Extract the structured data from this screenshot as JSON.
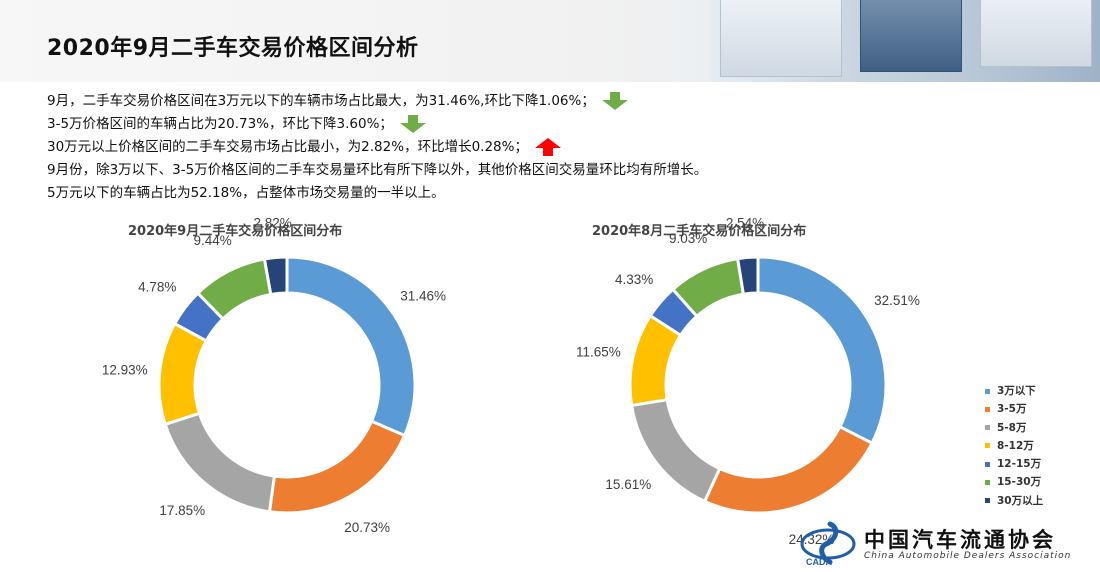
{
  "page": {
    "title": "2020年9月二手车交易价格区间分析"
  },
  "bullets": [
    {
      "text": "9月，二手车交易价格区间在3万元以下的车辆市场占比最大，为31.46%,环比下降1.06%；",
      "arrow": "down"
    },
    {
      "text": "3-5万价格区间的车辆占比为20.73%，环比下降3.60%；",
      "arrow": "down"
    },
    {
      "text": "30万元以上价格区间的二手车交易市场占比最小，为2.82%，环比增长0.28%；",
      "arrow": "up"
    },
    {
      "text": "9月份，除3万以下、3-5万价格区间的二手车交易量环比有所下降以外，其他价格区间交易量环比均有所增长。",
      "arrow": null
    },
    {
      "text": "5万元以下的车辆占比为52.18%，占整体市场交易量的一半以上。",
      "arrow": null
    }
  ],
  "arrow_colors": {
    "down": "#70ad47",
    "up": "#ff0000"
  },
  "chart_data": [
    {
      "type": "pie",
      "variant": "donut",
      "title": "2020年9月二手车交易价格区间分布",
      "categories": [
        "3万以下",
        "3-5万",
        "5-8万",
        "8-12万",
        "12-15万",
        "15-30万",
        "30万以上"
      ],
      "values": [
        31.46,
        20.73,
        17.85,
        12.93,
        4.78,
        9.44,
        2.82
      ],
      "labels": [
        "31.46%",
        "20.73%",
        "17.85%",
        "12.93%",
        "4.78%",
        "9.44%",
        "2.82%"
      ],
      "colors": [
        "#5b9bd5",
        "#ed7d31",
        "#a5a5a5",
        "#ffc000",
        "#4472c4",
        "#70ad47",
        "#264478"
      ]
    },
    {
      "type": "pie",
      "variant": "donut",
      "title": "2020年8月二手车交易价格区间分布",
      "categories": [
        "3万以下",
        "3-5万",
        "5-8万",
        "8-12万",
        "12-15万",
        "15-30万",
        "30万以上"
      ],
      "values": [
        32.51,
        24.32,
        15.61,
        11.65,
        4.33,
        9.03,
        2.54
      ],
      "labels": [
        "32.51%",
        "24.32%",
        "15.61%",
        "11.65%",
        "4.33%",
        "9.03%",
        "2.54%"
      ],
      "colors": [
        "#5b9bd5",
        "#ed7d31",
        "#a5a5a5",
        "#ffc000",
        "#4472c4",
        "#70ad47",
        "#264478"
      ]
    }
  ],
  "legend": {
    "items": [
      {
        "label": "3万以下",
        "color": "#5b9bd5"
      },
      {
        "label": "3-5万",
        "color": "#ed7d31"
      },
      {
        "label": "5-8万",
        "color": "#a5a5a5"
      },
      {
        "label": "8-12万",
        "color": "#ffc000"
      },
      {
        "label": "12-15万",
        "color": "#4472c4"
      },
      {
        "label": "15-30万",
        "color": "#70ad47"
      },
      {
        "label": "30万以上",
        "color": "#264478"
      }
    ]
  },
  "logo": {
    "name": "中国汽车流通协会",
    "subtitle": "China Automobile Dealers Association",
    "mark_text": "CADA"
  }
}
